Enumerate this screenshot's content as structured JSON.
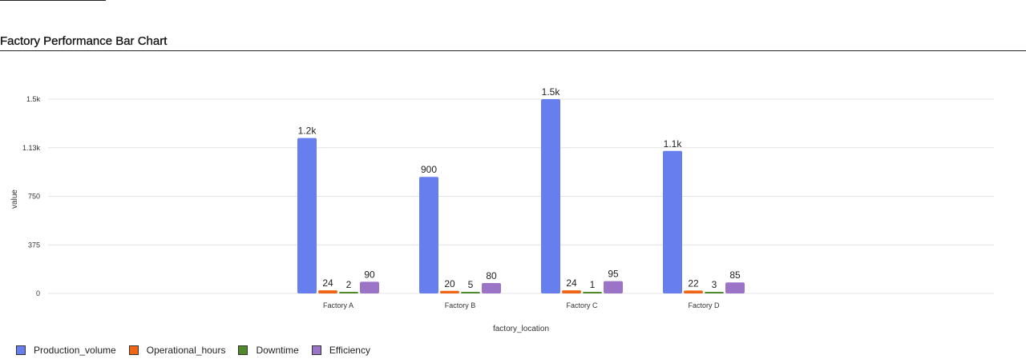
{
  "chart_data": {
    "type": "bar",
    "title": "Factory Performance Bar Chart",
    "xlabel": "factory_location",
    "ylabel": "value",
    "categories": [
      "Factory A",
      "Factory B",
      "Factory C",
      "Factory D"
    ],
    "ylim": [
      0,
      1500
    ],
    "yticks": [
      0,
      375,
      750,
      1125,
      1500
    ],
    "ytick_labels": [
      "0",
      "375",
      "750",
      "1.13k",
      "1.5k"
    ],
    "grid": true,
    "legend_position": "bottom-left",
    "series": [
      {
        "name": "Production_volume",
        "color": "#667eee",
        "values": [
          1200,
          900,
          1500,
          1100
        ],
        "labels": [
          "1.2k",
          "900",
          "1.5k",
          "1.1k"
        ]
      },
      {
        "name": "Operational_hours",
        "color": "#f06414",
        "values": [
          24,
          20,
          24,
          22
        ],
        "labels": [
          "24",
          "20",
          "24",
          "22"
        ]
      },
      {
        "name": "Downtime",
        "color": "#4e8a2a",
        "values": [
          2,
          5,
          1,
          3
        ],
        "labels": [
          "2",
          "5",
          "1",
          "3"
        ]
      },
      {
        "name": "Efficiency",
        "color": "#9b74c8",
        "values": [
          90,
          80,
          95,
          85
        ],
        "labels": [
          "90",
          "80",
          "95",
          "85"
        ]
      }
    ]
  }
}
